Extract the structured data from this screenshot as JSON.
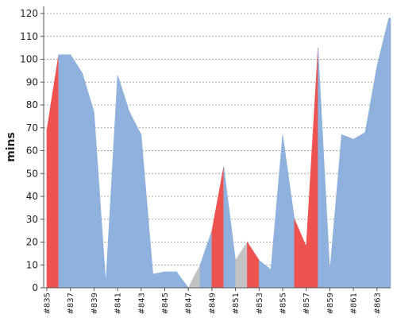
{
  "chart_data": {
    "type": "area",
    "title": "",
    "xlabel": "",
    "ylabel": "mins",
    "ylim": [
      0,
      120
    ],
    "y_ticks": [
      0,
      10,
      20,
      30,
      40,
      50,
      60,
      70,
      80,
      90,
      100,
      110,
      120
    ],
    "grid": true,
    "legend": "none",
    "x_tick_labels": [
      "#835",
      "#837",
      "#839",
      "#841",
      "#843",
      "#845",
      "#847",
      "#849",
      "#851",
      "#853",
      "#855",
      "#857",
      "#859",
      "#861",
      "#863"
    ],
    "categories": [
      "#835",
      "#836",
      "#837",
      "#838",
      "#839",
      "#840",
      "#841",
      "#842",
      "#843",
      "#844",
      "#845",
      "#846",
      "#847",
      "#848",
      "#849",
      "#850",
      "#851",
      "#852",
      "#853",
      "#854",
      "#855",
      "#856",
      "#857",
      "#858",
      "#859",
      "#860",
      "#861",
      "#862",
      "#863",
      "#864"
    ],
    "series": [
      {
        "values": [
          69,
          102,
          102,
          94,
          77,
          2,
          93,
          77,
          67,
          6,
          7,
          7,
          0,
          10,
          25,
          53,
          12,
          20,
          12,
          8,
          67,
          30,
          18,
          105,
          7,
          67,
          65,
          68,
          97,
          118
        ],
        "colors": {
          "increase": "#ef5350",
          "normal": "#8fb1dd",
          "neutral": "#c2c2c2"
        }
      }
    ],
    "band_kind": [
      "red",
      "blue",
      "blue",
      "blue",
      "blue",
      "blue",
      "blue",
      "blue",
      "blue",
      "blue",
      "blue",
      "blue",
      "gray",
      "blue",
      "red",
      "blue",
      "gray",
      "red",
      "blue",
      "blue",
      "blue",
      "red",
      "red",
      "blue",
      "blue",
      "blue",
      "blue",
      "blue",
      "blue",
      "blue"
    ]
  }
}
